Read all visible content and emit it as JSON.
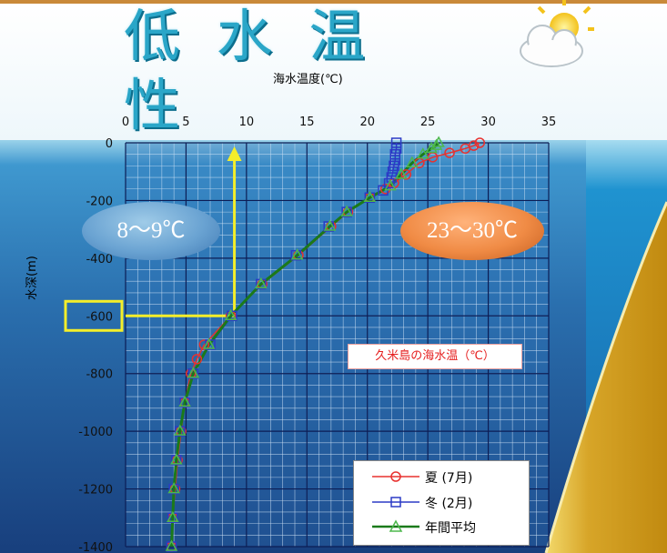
{
  "title": "低 水 温 性",
  "colors": {
    "summer": "#e8312f",
    "winter": "#2b3bc6",
    "annual": "#1a7a1a",
    "highlight": "#f4ee2a"
  },
  "chart_data": {
    "type": "line",
    "title": "",
    "xlabel": "海水温度(℃)",
    "ylabel": "水深(m)",
    "xlim": [
      0,
      35
    ],
    "ylim": [
      -1400,
      0
    ],
    "xticks": [
      0,
      5,
      10,
      15,
      20,
      25,
      30,
      35
    ],
    "yticks": [
      0,
      -200,
      -400,
      -600,
      -800,
      -1000,
      -1200,
      -1400
    ],
    "x_tick_labels": [
      "0",
      "5",
      "10",
      "15",
      "20",
      "25",
      "30",
      "35"
    ],
    "y_tick_labels": [
      "0",
      "-200",
      "-400",
      "-600",
      "-800",
      "-1000",
      "-1200",
      "-1400"
    ],
    "grid": true,
    "legend_position": "bottom-right",
    "series": [
      {
        "name": "夏 (7月)",
        "marker": "circle",
        "points": [
          [
            29.3,
            0
          ],
          [
            28.8,
            -10
          ],
          [
            28.1,
            -20
          ],
          [
            26.8,
            -35
          ],
          [
            25.4,
            -50
          ],
          [
            24.3,
            -70
          ],
          [
            23.2,
            -110
          ],
          [
            22.2,
            -140
          ],
          [
            21.5,
            -160
          ],
          [
            20.2,
            -190
          ],
          [
            18.4,
            -240
          ],
          [
            17.0,
            -290
          ],
          [
            14.3,
            -390
          ],
          [
            11.3,
            -490
          ],
          [
            8.7,
            -600
          ],
          [
            6.5,
            -700
          ],
          [
            5.9,
            -750
          ],
          [
            5.4,
            -800
          ],
          [
            4.9,
            -900
          ],
          [
            4.6,
            -1000
          ],
          [
            4.3,
            -1100
          ],
          [
            4.1,
            -1200
          ],
          [
            3.9,
            -1300
          ],
          [
            3.8,
            -1400
          ]
        ]
      },
      {
        "name": "冬 (2月)",
        "marker": "square",
        "points": [
          [
            22.4,
            0
          ],
          [
            22.4,
            -20
          ],
          [
            22.3,
            -40
          ],
          [
            22.3,
            -60
          ],
          [
            22.2,
            -80
          ],
          [
            22.1,
            -100
          ],
          [
            22.0,
            -120
          ],
          [
            21.8,
            -140
          ],
          [
            21.3,
            -165
          ],
          [
            20.2,
            -190
          ],
          [
            18.3,
            -240
          ],
          [
            16.8,
            -290
          ],
          [
            14.1,
            -390
          ],
          [
            11.2,
            -490
          ],
          [
            8.8,
            -600
          ],
          [
            7.0,
            -700
          ],
          [
            5.6,
            -800
          ],
          [
            4.9,
            -900
          ],
          [
            4.5,
            -1000
          ],
          [
            4.2,
            -1100
          ],
          [
            4.0,
            -1200
          ],
          [
            3.9,
            -1300
          ],
          [
            3.8,
            -1400
          ]
        ]
      },
      {
        "name": "年間平均",
        "marker": "triangle",
        "points": [
          [
            25.9,
            0
          ],
          [
            25.7,
            -10
          ],
          [
            25.3,
            -20
          ],
          [
            24.6,
            -40
          ],
          [
            23.7,
            -70
          ],
          [
            22.8,
            -110
          ],
          [
            21.9,
            -150
          ],
          [
            20.2,
            -190
          ],
          [
            18.3,
            -240
          ],
          [
            16.9,
            -290
          ],
          [
            14.2,
            -390
          ],
          [
            11.2,
            -490
          ],
          [
            8.7,
            -600
          ],
          [
            6.9,
            -700
          ],
          [
            5.6,
            -800
          ],
          [
            4.9,
            -900
          ],
          [
            4.5,
            -1000
          ],
          [
            4.2,
            -1100
          ],
          [
            4.0,
            -1200
          ],
          [
            3.9,
            -1300
          ],
          [
            3.8,
            -1400
          ]
        ]
      }
    ],
    "annotations": {
      "deep_label": "8～9℃",
      "surface_label": "23～30℃",
      "caption": "久米島の海水温（℃）",
      "highlight_depth": -600,
      "highlight_temp": 9
    }
  }
}
